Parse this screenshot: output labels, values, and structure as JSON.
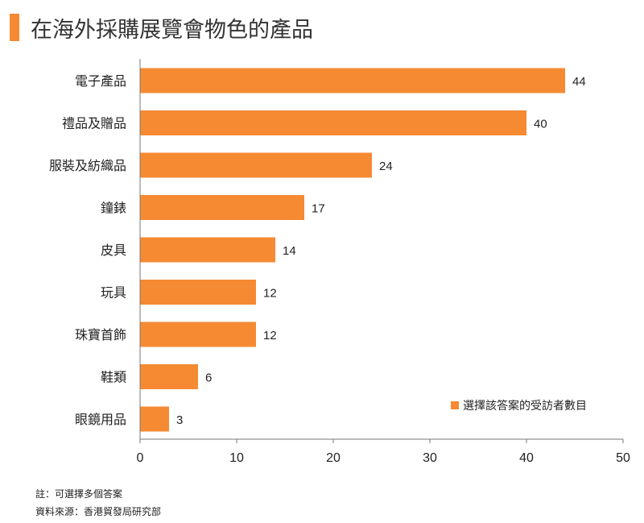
{
  "title": "在海外採購展覽會物色的產品",
  "colors": {
    "accent": "#f58a33",
    "bar": "#f58a33",
    "axis": "#777777",
    "text": "#222222"
  },
  "chart_data": {
    "type": "bar",
    "orientation": "horizontal",
    "categories": [
      "電子產品",
      "禮品及贈品",
      "服裝及紡織品",
      "鐘錶",
      "皮具",
      "玩具",
      "珠寶首飾",
      "鞋類",
      "眼鏡用品"
    ],
    "series": [
      {
        "name": "選擇該答案的受訪者數目",
        "values": [
          44,
          40,
          24,
          17,
          14,
          12,
          12,
          6,
          3
        ]
      }
    ],
    "xlim": [
      0,
      50
    ],
    "xticks": [
      0,
      10,
      20,
      30,
      40,
      50
    ],
    "grid": false,
    "data_labels": true,
    "legend_position": "bottom-right"
  },
  "notes": {
    "note": "註：可選擇多個答案",
    "source": "資料來源：香港貿發局研究部"
  }
}
